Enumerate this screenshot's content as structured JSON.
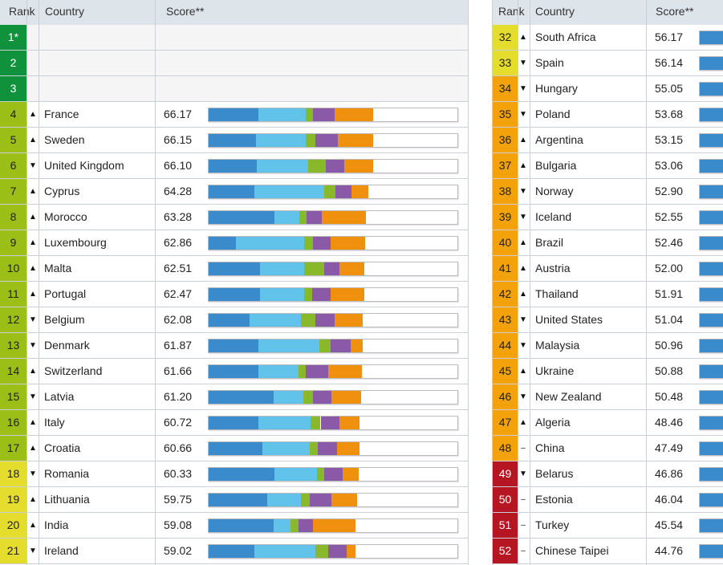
{
  "headers": {
    "rank": "Rank",
    "country": "Country",
    "score": "Score**"
  },
  "colors": {
    "rank_green": "#10923c",
    "rank_lime": "#9cbf18",
    "rank_yellow": "#e5dd2e",
    "rank_orange": "#f3a20c",
    "rank_red": "#b51622",
    "segments": [
      "#3a8bcb",
      "#61c2ea",
      "#8ab82b",
      "#8a5aa8",
      "#f0900f"
    ]
  },
  "chart_data": {
    "type": "table",
    "bar_scale_max": 100,
    "left_rows": [
      {
        "rank": "1*",
        "tier": "green",
        "arrow": "",
        "country": "",
        "score": ""
      },
      {
        "rank": "2",
        "tier": "green",
        "arrow": "",
        "country": "",
        "score": ""
      },
      {
        "rank": "3",
        "tier": "green",
        "arrow": "",
        "country": "",
        "score": ""
      },
      {
        "rank": "4",
        "tier": "lime",
        "arrow": "▲",
        "country": "France",
        "score": "66.17",
        "segments": [
          20,
          19,
          3,
          8.5,
          15.67
        ]
      },
      {
        "rank": "5",
        "tier": "lime",
        "arrow": "▲",
        "country": "Sweden",
        "score": "66.15",
        "segments": [
          19,
          20,
          4,
          9,
          14.15
        ]
      },
      {
        "rank": "6",
        "tier": "lime",
        "arrow": "▼",
        "country": "United Kingdom",
        "score": "66.10",
        "segments": [
          19.5,
          20.5,
          7,
          7.5,
          11.6
        ]
      },
      {
        "rank": "7",
        "tier": "lime",
        "arrow": "▲",
        "country": "Cyprus",
        "score": "64.28",
        "segments": [
          18.5,
          28,
          4.5,
          6.5,
          6.78
        ]
      },
      {
        "rank": "8",
        "tier": "lime",
        "arrow": "▲",
        "country": "Morocco",
        "score": "63.28",
        "segments": [
          26.5,
          10,
          3,
          6,
          17.78
        ]
      },
      {
        "rank": "9",
        "tier": "lime",
        "arrow": "▲",
        "country": "Luxembourg",
        "score": "62.86",
        "segments": [
          11,
          27.5,
          3.5,
          7,
          13.86
        ]
      },
      {
        "rank": "10",
        "tier": "lime",
        "arrow": "▲",
        "country": "Malta",
        "score": "62.51",
        "segments": [
          20.5,
          18,
          8,
          6,
          10.01
        ]
      },
      {
        "rank": "11",
        "tier": "lime",
        "arrow": "▲",
        "country": "Portugal",
        "score": "62.47",
        "segments": [
          20.5,
          18,
          3,
          7.5,
          13.47
        ]
      },
      {
        "rank": "12",
        "tier": "lime",
        "arrow": "▼",
        "country": "Belgium",
        "score": "62.08",
        "segments": [
          16.5,
          20.5,
          6,
          7.5,
          11.58
        ]
      },
      {
        "rank": "13",
        "tier": "lime",
        "arrow": "▼",
        "country": "Denmark",
        "score": "61.87",
        "segments": [
          20,
          24.5,
          4.5,
          8,
          4.87
        ]
      },
      {
        "rank": "14",
        "tier": "lime",
        "arrow": "▲",
        "country": "Switzerland",
        "score": "61.66",
        "segments": [
          20,
          16,
          3,
          9,
          13.66
        ]
      },
      {
        "rank": "15",
        "tier": "lime",
        "arrow": "▼",
        "country": "Latvia",
        "score": "61.20",
        "segments": [
          26,
          12,
          4,
          7.5,
          11.7
        ]
      },
      {
        "rank": "16",
        "tier": "lime",
        "arrow": "▲",
        "country": "Italy",
        "score": "60.72",
        "segments": [
          20,
          21,
          4,
          7.5,
          8.22
        ]
      },
      {
        "rank": "17",
        "tier": "lime",
        "arrow": "▲",
        "country": "Croatia",
        "score": "60.66",
        "segments": [
          21.5,
          19,
          3.5,
          7.5,
          9.16
        ]
      },
      {
        "rank": "18",
        "tier": "yellow",
        "arrow": "▼",
        "country": "Romania",
        "score": "60.33",
        "segments": [
          26.5,
          17,
          3,
          7.5,
          6.33
        ]
      },
      {
        "rank": "19",
        "tier": "yellow",
        "arrow": "▲",
        "country": "Lithuania",
        "score": "59.75",
        "segments": [
          23.5,
          13.5,
          3.5,
          9,
          10.25
        ]
      },
      {
        "rank": "20",
        "tier": "yellow",
        "arrow": "▲",
        "country": "India",
        "score": "59.08",
        "segments": [
          26,
          7,
          3,
          6,
          17.08
        ]
      },
      {
        "rank": "21",
        "tier": "yellow",
        "arrow": "▼",
        "country": "Ireland",
        "score": "59.02",
        "segments": [
          18.5,
          24.5,
          5,
          7.5,
          3.52
        ]
      }
    ],
    "right_rows": [
      {
        "rank": "32",
        "tier": "yellow",
        "arrow": "▲",
        "country": "South Africa",
        "score": "56.17"
      },
      {
        "rank": "33",
        "tier": "yellow",
        "arrow": "▼",
        "country": "Spain",
        "score": "56.14"
      },
      {
        "rank": "34",
        "tier": "orange",
        "arrow": "▼",
        "country": "Hungary",
        "score": "55.05"
      },
      {
        "rank": "35",
        "tier": "orange",
        "arrow": "▼",
        "country": "Poland",
        "score": "53.68"
      },
      {
        "rank": "36",
        "tier": "orange",
        "arrow": "▲",
        "country": "Argentina",
        "score": "53.15"
      },
      {
        "rank": "37",
        "tier": "orange",
        "arrow": "▲",
        "country": "Bulgaria",
        "score": "53.06"
      },
      {
        "rank": "38",
        "tier": "orange",
        "arrow": "▼",
        "country": "Norway",
        "score": "52.90"
      },
      {
        "rank": "39",
        "tier": "orange",
        "arrow": "▼",
        "country": "Iceland",
        "score": "52.55"
      },
      {
        "rank": "40",
        "tier": "orange",
        "arrow": "▲",
        "country": "Brazil",
        "score": "52.46"
      },
      {
        "rank": "41",
        "tier": "orange",
        "arrow": "▲",
        "country": "Austria",
        "score": "52.00"
      },
      {
        "rank": "42",
        "tier": "orange",
        "arrow": "▲",
        "country": "Thailand",
        "score": "51.91"
      },
      {
        "rank": "43",
        "tier": "orange",
        "arrow": "▼",
        "country": "United States",
        "score": "51.04"
      },
      {
        "rank": "44",
        "tier": "orange",
        "arrow": "▼",
        "country": "Malaysia",
        "score": "50.96"
      },
      {
        "rank": "45",
        "tier": "orange",
        "arrow": "▲",
        "country": "Ukraine",
        "score": "50.88"
      },
      {
        "rank": "46",
        "tier": "orange",
        "arrow": "▼",
        "country": "New Zealand",
        "score": "50.48"
      },
      {
        "rank": "47",
        "tier": "orange",
        "arrow": "▲",
        "country": "Algeria",
        "score": "48.46"
      },
      {
        "rank": "48",
        "tier": "orange",
        "arrow": "–",
        "country": "China",
        "score": "47.49"
      },
      {
        "rank": "49",
        "tier": "red",
        "arrow": "▼",
        "country": "Belarus",
        "score": "46.86"
      },
      {
        "rank": "50",
        "tier": "red",
        "arrow": "–",
        "country": "Estonia",
        "score": "46.04"
      },
      {
        "rank": "51",
        "tier": "red",
        "arrow": "–",
        "country": "Turkey",
        "score": "45.54"
      },
      {
        "rank": "52",
        "tier": "red",
        "arrow": "–",
        "country": "Chinese Taipei",
        "score": "44.76"
      }
    ]
  }
}
